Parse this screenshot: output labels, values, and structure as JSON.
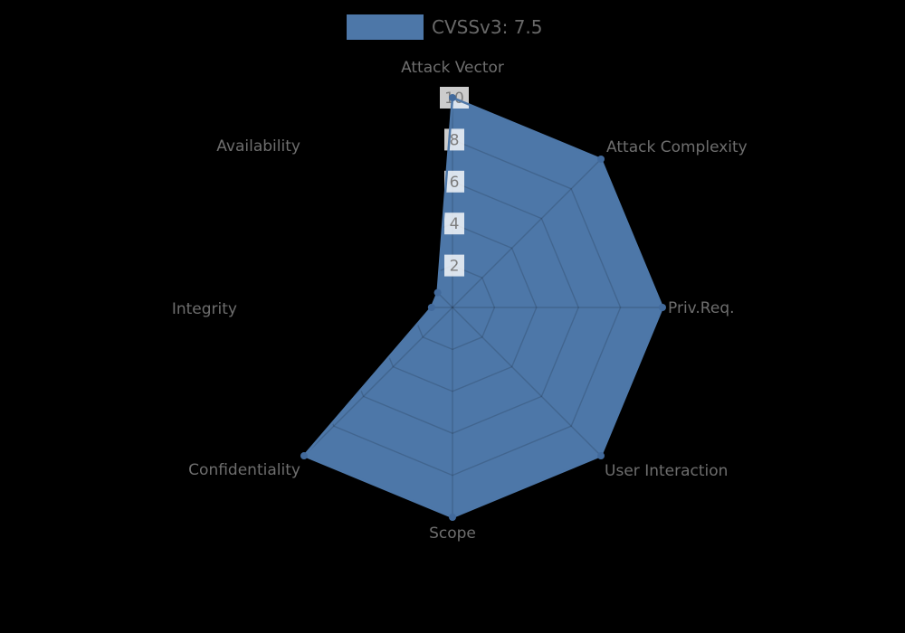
{
  "page": {
    "background_color": "#000000"
  },
  "legend": {
    "label": "CVSSv3: 7.5",
    "swatch_color": "#4d77a8"
  },
  "chart_data": {
    "type": "radar",
    "title": "",
    "legend_position": "top-center",
    "legend_entries": [
      "CVSSv3: 7.5"
    ],
    "categories": [
      "Attack Vector",
      "Attack Complexity",
      "Priv.Req.",
      "User Interaction",
      "Scope",
      "Confidentiality",
      "Integrity",
      "Availability"
    ],
    "series": [
      {
        "name": "CVSSv3: 7.5",
        "values": [
          10,
          10,
          10,
          10,
          10,
          10,
          1,
          1
        ]
      }
    ],
    "range": [
      0,
      10
    ],
    "tick_values": [
      2,
      4,
      6,
      8,
      10
    ],
    "grid": "octagonal-web",
    "grid_on": true,
    "theme": {
      "fill_color": "#4d77a8",
      "stroke_color": "#4d77a8",
      "marker_color": "#426a9c",
      "grid_color": "rgba(0,0,0,0.15)",
      "tick_box_color": "rgba(255,255,255,0.8)",
      "tick_text_color": "#7d7d7d",
      "label_color": "#6e6e6e"
    }
  }
}
